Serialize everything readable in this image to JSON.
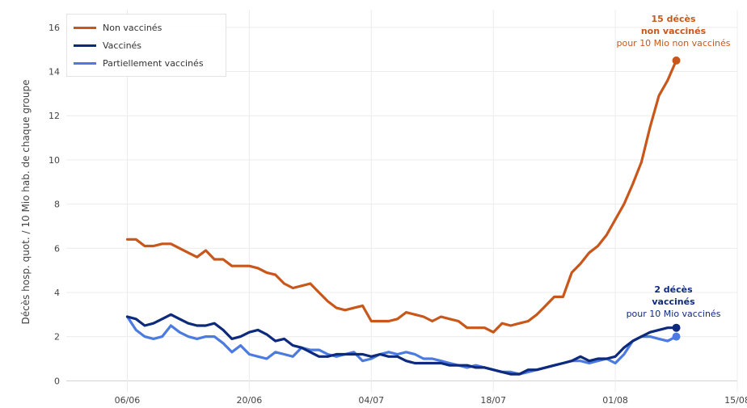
{
  "chart_data": {
    "type": "line",
    "ylabel": "Décès hosp. quot. / 10 Mio hab. de chaque groupe",
    "ylim": [
      -0.5,
      16.8
    ],
    "yticks": [
      0,
      2,
      4,
      6,
      8,
      10,
      12,
      14,
      16
    ],
    "xlim": [
      "2021-05-30",
      "2021-08-15"
    ],
    "xticks": [
      {
        "date": "2021-06-06",
        "label": "06/06"
      },
      {
        "date": "2021-06-20",
        "label": "20/06"
      },
      {
        "date": "2021-07-04",
        "label": "04/07"
      },
      {
        "date": "2021-07-18",
        "label": "18/07"
      },
      {
        "date": "2021-08-01",
        "label": "01/08"
      },
      {
        "date": "2021-08-15",
        "label": "15/08"
      }
    ],
    "grid": true,
    "legend_position": "top-left",
    "x": [
      "2021-06-06",
      "2021-06-07",
      "2021-06-08",
      "2021-06-09",
      "2021-06-10",
      "2021-06-11",
      "2021-06-12",
      "2021-06-13",
      "2021-06-14",
      "2021-06-15",
      "2021-06-16",
      "2021-06-17",
      "2021-06-18",
      "2021-06-19",
      "2021-06-20",
      "2021-06-21",
      "2021-06-22",
      "2021-06-23",
      "2021-06-24",
      "2021-06-25",
      "2021-06-26",
      "2021-06-27",
      "2021-06-28",
      "2021-06-29",
      "2021-06-30",
      "2021-07-01",
      "2021-07-02",
      "2021-07-03",
      "2021-07-04",
      "2021-07-05",
      "2021-07-06",
      "2021-07-07",
      "2021-07-08",
      "2021-07-09",
      "2021-07-10",
      "2021-07-11",
      "2021-07-12",
      "2021-07-13",
      "2021-07-14",
      "2021-07-15",
      "2021-07-16",
      "2021-07-17",
      "2021-07-18",
      "2021-07-19",
      "2021-07-20",
      "2021-07-21",
      "2021-07-22",
      "2021-07-23",
      "2021-07-24",
      "2021-07-25",
      "2021-07-26",
      "2021-07-27",
      "2021-07-28",
      "2021-07-29",
      "2021-07-30",
      "2021-07-31",
      "2021-08-01",
      "2021-08-02",
      "2021-08-03",
      "2021-08-04",
      "2021-08-05",
      "2021-08-06",
      "2021-08-07",
      "2021-08-08"
    ],
    "series": [
      {
        "name": "Non vaccinés",
        "color": "#c8571b",
        "values": [
          6.4,
          6.4,
          6.1,
          6.1,
          6.2,
          6.2,
          6.0,
          5.8,
          5.6,
          5.9,
          5.5,
          5.5,
          5.2,
          5.2,
          5.2,
          5.1,
          4.9,
          4.8,
          4.4,
          4.2,
          4.3,
          4.4,
          4.0,
          3.6,
          3.3,
          3.2,
          3.3,
          3.4,
          2.7,
          2.7,
          2.7,
          2.8,
          3.1,
          3.0,
          2.9,
          2.7,
          2.9,
          2.8,
          2.7,
          2.4,
          2.4,
          2.4,
          2.2,
          2.6,
          2.5,
          2.6,
          2.7,
          3.0,
          3.4,
          3.8,
          3.8,
          4.9,
          5.3,
          5.8,
          6.1,
          6.6,
          7.3,
          8.0,
          8.9,
          9.9,
          11.5,
          12.9,
          13.6,
          14.5
        ]
      },
      {
        "name": "Vaccinés",
        "color": "#0e2a7c",
        "values": [
          2.9,
          2.8,
          2.5,
          2.6,
          2.8,
          3.0,
          2.8,
          2.6,
          2.5,
          2.5,
          2.6,
          2.3,
          1.9,
          2.0,
          2.2,
          2.3,
          2.1,
          1.8,
          1.9,
          1.6,
          1.5,
          1.3,
          1.1,
          1.1,
          1.2,
          1.2,
          1.2,
          1.2,
          1.1,
          1.2,
          1.1,
          1.1,
          0.9,
          0.8,
          0.8,
          0.8,
          0.8,
          0.7,
          0.7,
          0.7,
          0.6,
          0.6,
          0.5,
          0.4,
          0.3,
          0.3,
          0.5,
          0.5,
          0.6,
          0.7,
          0.8,
          0.9,
          1.1,
          0.9,
          1.0,
          1.0,
          1.1,
          1.5,
          1.8,
          2.0,
          2.2,
          2.3,
          2.4,
          2.4
        ]
      },
      {
        "name": "Partiellement vaccinés",
        "color": "#4b7be0",
        "values": [
          2.9,
          2.3,
          2.0,
          1.9,
          2.0,
          2.5,
          2.2,
          2.0,
          1.9,
          2.0,
          2.0,
          1.7,
          1.3,
          1.6,
          1.2,
          1.1,
          1.0,
          1.3,
          1.2,
          1.1,
          1.5,
          1.4,
          1.4,
          1.2,
          1.1,
          1.2,
          1.3,
          0.9,
          1.0,
          1.2,
          1.3,
          1.2,
          1.3,
          1.2,
          1.0,
          1.0,
          0.9,
          0.8,
          0.7,
          0.6,
          0.7,
          0.6,
          0.5,
          0.4,
          0.4,
          0.3,
          0.4,
          0.5,
          0.6,
          0.7,
          0.8,
          0.9,
          0.9,
          0.8,
          0.9,
          1.0,
          0.8,
          1.2,
          1.8,
          2.0,
          2.0,
          1.9,
          1.8,
          2.0
        ]
      }
    ],
    "annotations": [
      {
        "series": "Non vaccinés",
        "line1": "15 décès",
        "line2": "non vaccinés",
        "line3": "pour 10 Mio non vaccinés",
        "color": "#c8571b"
      },
      {
        "series": "Vaccinés",
        "line1": "2 décès",
        "line2": "vaccinés",
        "line3": "pour 10 Mio vaccinés",
        "color": "#0e2a7c"
      }
    ]
  }
}
